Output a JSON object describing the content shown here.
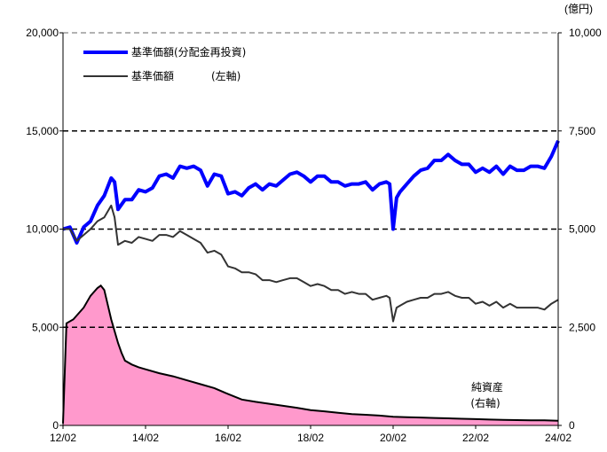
{
  "chart_data": {
    "type": "line",
    "unit_right": "(億円)",
    "x_ticks": [
      "12/02",
      "14/02",
      "16/02",
      "18/02",
      "20/02",
      "22/02",
      "24/02"
    ],
    "y_left": {
      "min": 0,
      "max": 20000,
      "ticks": [
        "0",
        "5,000",
        "10,000",
        "15,000",
        "20,000"
      ]
    },
    "y_right": {
      "min": 0,
      "max": 10000,
      "ticks": [
        "0",
        "2,500",
        "5,000",
        "7,500",
        "10,000"
      ]
    },
    "grid": "dashed horizontal",
    "legend": {
      "position": "top-left"
    },
    "series": [
      {
        "name": "基準価額(分配金再投資)",
        "color": "#0000ff",
        "axis": "left",
        "points": [
          [
            "12/02",
            10000
          ],
          [
            "12/04",
            10100
          ],
          [
            "12/06",
            9300
          ],
          [
            "12/08",
            10100
          ],
          [
            "12/10",
            10400
          ],
          [
            "12/12",
            11200
          ],
          [
            "13/02",
            11700
          ],
          [
            "13/04",
            12600
          ],
          [
            "13/05",
            12400
          ],
          [
            "13/06",
            11000
          ],
          [
            "13/08",
            11500
          ],
          [
            "13/10",
            11500
          ],
          [
            "13/12",
            12000
          ],
          [
            "14/02",
            11900
          ],
          [
            "14/04",
            12100
          ],
          [
            "14/06",
            12700
          ],
          [
            "14/08",
            12800
          ],
          [
            "14/10",
            12600
          ],
          [
            "14/12",
            13200
          ],
          [
            "15/02",
            13100
          ],
          [
            "15/04",
            13200
          ],
          [
            "15/06",
            13000
          ],
          [
            "15/08",
            12200
          ],
          [
            "15/10",
            12800
          ],
          [
            "15/12",
            12700
          ],
          [
            "16/02",
            11800
          ],
          [
            "16/04",
            11900
          ],
          [
            "16/06",
            11700
          ],
          [
            "16/08",
            12100
          ],
          [
            "16/10",
            12300
          ],
          [
            "16/12",
            12000
          ],
          [
            "17/02",
            12300
          ],
          [
            "17/04",
            12200
          ],
          [
            "17/06",
            12500
          ],
          [
            "17/08",
            12800
          ],
          [
            "17/10",
            12900
          ],
          [
            "17/12",
            12700
          ],
          [
            "18/02",
            12400
          ],
          [
            "18/04",
            12700
          ],
          [
            "18/06",
            12700
          ],
          [
            "18/08",
            12400
          ],
          [
            "18/10",
            12400
          ],
          [
            "18/12",
            12200
          ],
          [
            "19/02",
            12300
          ],
          [
            "19/04",
            12300
          ],
          [
            "19/06",
            12400
          ],
          [
            "19/08",
            12000
          ],
          [
            "19/10",
            12300
          ],
          [
            "19/12",
            12400
          ],
          [
            "20/01",
            12300
          ],
          [
            "20/02",
            10000
          ],
          [
            "20/03",
            11600
          ],
          [
            "20/04",
            11900
          ],
          [
            "20/06",
            12300
          ],
          [
            "20/08",
            12700
          ],
          [
            "20/10",
            13000
          ],
          [
            "20/12",
            13100
          ],
          [
            "21/02",
            13500
          ],
          [
            "21/04",
            13500
          ],
          [
            "21/06",
            13800
          ],
          [
            "21/08",
            13500
          ],
          [
            "21/10",
            13300
          ],
          [
            "21/12",
            13300
          ],
          [
            "22/02",
            12900
          ],
          [
            "22/04",
            13100
          ],
          [
            "22/06",
            12900
          ],
          [
            "22/08",
            13200
          ],
          [
            "22/10",
            12800
          ],
          [
            "22/12",
            13200
          ],
          [
            "23/02",
            13000
          ],
          [
            "23/04",
            13000
          ],
          [
            "23/06",
            13200
          ],
          [
            "23/08",
            13200
          ],
          [
            "23/10",
            13100
          ],
          [
            "23/12",
            13700
          ],
          [
            "24/02",
            14500
          ]
        ]
      },
      {
        "name": "基準価額",
        "axis_label": "(左軸)",
        "color": "#333333",
        "axis": "left",
        "points": [
          [
            "12/02",
            10000
          ],
          [
            "12/04",
            10000
          ],
          [
            "12/06",
            9400
          ],
          [
            "12/08",
            9700
          ],
          [
            "12/10",
            10000
          ],
          [
            "12/12",
            10400
          ],
          [
            "13/02",
            10600
          ],
          [
            "13/04",
            11200
          ],
          [
            "13/05",
            10600
          ],
          [
            "13/06",
            9200
          ],
          [
            "13/08",
            9400
          ],
          [
            "13/10",
            9300
          ],
          [
            "13/12",
            9600
          ],
          [
            "14/02",
            9500
          ],
          [
            "14/04",
            9400
          ],
          [
            "14/06",
            9700
          ],
          [
            "14/08",
            9700
          ],
          [
            "14/10",
            9600
          ],
          [
            "14/12",
            9900
          ],
          [
            "15/02",
            9700
          ],
          [
            "15/04",
            9500
          ],
          [
            "15/06",
            9300
          ],
          [
            "15/08",
            8800
          ],
          [
            "15/10",
            8900
          ],
          [
            "15/12",
            8700
          ],
          [
            "16/02",
            8100
          ],
          [
            "16/04",
            8000
          ],
          [
            "16/06",
            7800
          ],
          [
            "16/08",
            7800
          ],
          [
            "16/10",
            7700
          ],
          [
            "16/12",
            7400
          ],
          [
            "17/02",
            7400
          ],
          [
            "17/04",
            7300
          ],
          [
            "17/06",
            7400
          ],
          [
            "17/08",
            7500
          ],
          [
            "17/10",
            7500
          ],
          [
            "17/12",
            7300
          ],
          [
            "18/02",
            7100
          ],
          [
            "18/04",
            7200
          ],
          [
            "18/06",
            7100
          ],
          [
            "18/08",
            6900
          ],
          [
            "18/10",
            6900
          ],
          [
            "18/12",
            6700
          ],
          [
            "19/02",
            6800
          ],
          [
            "19/04",
            6700
          ],
          [
            "19/06",
            6700
          ],
          [
            "19/08",
            6400
          ],
          [
            "19/10",
            6500
          ],
          [
            "19/12",
            6600
          ],
          [
            "20/01",
            6500
          ],
          [
            "20/02",
            5300
          ],
          [
            "20/03",
            6000
          ],
          [
            "20/04",
            6100
          ],
          [
            "20/06",
            6300
          ],
          [
            "20/08",
            6400
          ],
          [
            "20/10",
            6500
          ],
          [
            "20/12",
            6500
          ],
          [
            "21/02",
            6700
          ],
          [
            "21/04",
            6700
          ],
          [
            "21/06",
            6800
          ],
          [
            "21/08",
            6600
          ],
          [
            "21/10",
            6500
          ],
          [
            "21/12",
            6500
          ],
          [
            "22/02",
            6200
          ],
          [
            "22/04",
            6300
          ],
          [
            "22/06",
            6100
          ],
          [
            "22/08",
            6300
          ],
          [
            "22/10",
            6000
          ],
          [
            "22/12",
            6200
          ],
          [
            "23/02",
            6000
          ],
          [
            "23/04",
            6000
          ],
          [
            "23/06",
            6000
          ],
          [
            "23/08",
            6000
          ],
          [
            "23/10",
            5900
          ],
          [
            "23/12",
            6200
          ],
          [
            "24/02",
            6400
          ]
        ]
      },
      {
        "name": "純資産",
        "axis_label": "(右軸)",
        "color": "#ff99cc",
        "type": "area",
        "axis": "right",
        "points": [
          [
            "12/02",
            50
          ],
          [
            "12/03",
            2600
          ],
          [
            "12/05",
            2700
          ],
          [
            "12/08",
            3000
          ],
          [
            "12/10",
            3300
          ],
          [
            "12/12",
            3500
          ],
          [
            "13/01",
            3560
          ],
          [
            "13/02",
            3450
          ],
          [
            "13/04",
            2700
          ],
          [
            "13/06",
            2100
          ],
          [
            "13/07",
            1850
          ],
          [
            "13/08",
            1650
          ],
          [
            "13/10",
            1550
          ],
          [
            "13/12",
            1480
          ],
          [
            "14/02",
            1430
          ],
          [
            "14/06",
            1330
          ],
          [
            "14/10",
            1250
          ],
          [
            "15/02",
            1150
          ],
          [
            "15/06",
            1050
          ],
          [
            "15/10",
            950
          ],
          [
            "16/02",
            800
          ],
          [
            "16/06",
            660
          ],
          [
            "16/10",
            600
          ],
          [
            "17/02",
            550
          ],
          [
            "17/06",
            500
          ],
          [
            "17/10",
            450
          ],
          [
            "18/02",
            390
          ],
          [
            "18/06",
            360
          ],
          [
            "18/10",
            320
          ],
          [
            "19/02",
            290
          ],
          [
            "19/06",
            270
          ],
          [
            "19/10",
            250
          ],
          [
            "20/02",
            220
          ],
          [
            "20/06",
            210
          ],
          [
            "20/10",
            200
          ],
          [
            "21/02",
            190
          ],
          [
            "21/06",
            180
          ],
          [
            "21/10",
            170
          ],
          [
            "22/02",
            160
          ],
          [
            "22/06",
            150
          ],
          [
            "22/10",
            140
          ],
          [
            "23/02",
            135
          ],
          [
            "23/06",
            130
          ],
          [
            "23/10",
            130
          ],
          [
            "24/02",
            120
          ]
        ]
      }
    ]
  },
  "annotations": {
    "net_assets_label": "純資産",
    "net_assets_axis": "(右軸)"
  }
}
